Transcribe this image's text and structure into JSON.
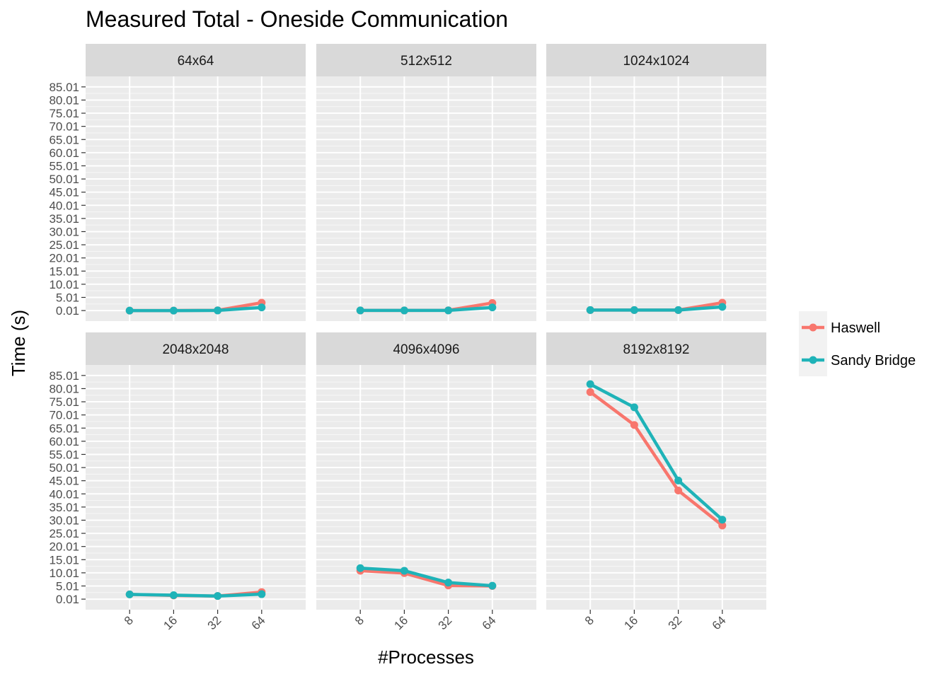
{
  "chart_data": {
    "type": "line",
    "title": "Measured Total - Oneside Communication",
    "xlabel": "#Processes",
    "ylabel": "Time (s)",
    "x_categories": [
      "8",
      "16",
      "32",
      "64"
    ],
    "y_ticks": [
      0.01,
      5.01,
      10.01,
      15.01,
      20.01,
      25.01,
      30.01,
      35.01,
      40.01,
      45.01,
      50.01,
      55.01,
      60.01,
      65.01,
      70.01,
      75.01,
      80.01,
      85.01
    ],
    "y_tick_labels": [
      "0.01",
      "5.01",
      "10.01",
      "15.01",
      "20.01",
      "25.01",
      "30.01",
      "35.01",
      "40.01",
      "45.01",
      "50.01",
      "55.01",
      "60.01",
      "65.01",
      "70.01",
      "75.01",
      "80.01",
      "85.01"
    ],
    "ylim": [
      -4.0,
      89.0
    ],
    "grid": true,
    "legend": {
      "placement": "right",
      "entries": [
        "Haswell",
        "Sandy Bridge"
      ]
    },
    "series_colors": {
      "Haswell": "#F8766D",
      "Sandy Bridge": "#1FB3B8"
    },
    "panels": [
      {
        "label": "64x64",
        "series": [
          {
            "name": "Haswell",
            "values": [
              0.01,
              0.01,
              0.1,
              3.0
            ]
          },
          {
            "name": "Sandy Bridge",
            "values": [
              0.01,
              0.0,
              0.05,
              1.2
            ]
          }
        ]
      },
      {
        "label": "512x512",
        "series": [
          {
            "name": "Haswell",
            "values": [
              0.05,
              0.05,
              0.1,
              2.9
            ]
          },
          {
            "name": "Sandy Bridge",
            "values": [
              0.05,
              0.05,
              0.05,
              1.2
            ]
          }
        ]
      },
      {
        "label": "1024x1024",
        "series": [
          {
            "name": "Haswell",
            "values": [
              0.2,
              0.2,
              0.2,
              3.0
            ]
          },
          {
            "name": "Sandy Bridge",
            "values": [
              0.2,
              0.2,
              0.2,
              1.4
            ]
          }
        ]
      },
      {
        "label": "2048x2048",
        "series": [
          {
            "name": "Haswell",
            "values": [
              1.8,
              1.4,
              1.2,
              2.7
            ]
          },
          {
            "name": "Sandy Bridge",
            "values": [
              1.8,
              1.5,
              1.2,
              1.9
            ]
          }
        ]
      },
      {
        "label": "4096x4096",
        "series": [
          {
            "name": "Haswell",
            "values": [
              10.8,
              9.9,
              5.2,
              5.0
            ]
          },
          {
            "name": "Sandy Bridge",
            "values": [
              11.8,
              10.8,
              6.3,
              5.1
            ]
          }
        ]
      },
      {
        "label": "8192x8192",
        "series": [
          {
            "name": "Haswell",
            "values": [
              78.7,
              66.2,
              41.3,
              28.0
            ]
          },
          {
            "name": "Sandy Bridge",
            "values": [
              81.7,
              72.9,
              45.1,
              30.2
            ]
          }
        ]
      }
    ]
  }
}
